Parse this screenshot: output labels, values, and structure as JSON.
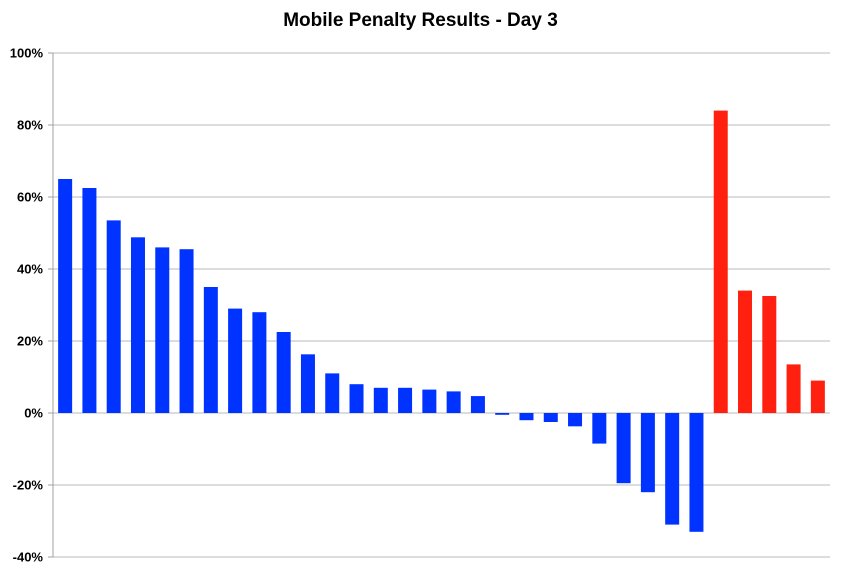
{
  "chart_data": {
    "type": "bar",
    "title": "Mobile Penalty Results - Day 3",
    "xlabel": "",
    "ylabel": "",
    "ylim": [
      -40,
      100
    ],
    "yticks": [
      100,
      80,
      60,
      40,
      20,
      0,
      -20,
      -40
    ],
    "ytick_labels": [
      "100%",
      "80%",
      "60%",
      "40%",
      "20%",
      "0%",
      "-20%",
      "-40%"
    ],
    "grid": true,
    "legend": "none",
    "series": [
      {
        "color": "#0033ff",
        "values": [
          65,
          62.5,
          53.5,
          48.8,
          46,
          45.5,
          35,
          29,
          28,
          22.5,
          16.3,
          11,
          8,
          7,
          7,
          6.5,
          6,
          4.7,
          -0.5,
          -2,
          -2.5,
          -3.7,
          -8.5,
          -19.5,
          -22,
          -31,
          -33
        ]
      },
      {
        "color": "#ff2010",
        "values": [
          84,
          34,
          32.5,
          13.5,
          9
        ]
      }
    ]
  }
}
